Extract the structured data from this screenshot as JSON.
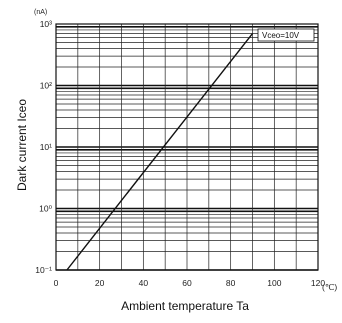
{
  "chart_data": {
    "type": "line",
    "title": "",
    "xlabel": "Ambient temperature   Ta",
    "xunit": "(℃)",
    "ylabel": "Dark current   Iceo",
    "yunit": "(nA)",
    "xlim": [
      0,
      120
    ],
    "ylim": [
      0.1,
      1000
    ],
    "yscale": "log",
    "grid": true,
    "x_ticks": [
      "0",
      "20",
      "40",
      "60",
      "80",
      "100",
      "120"
    ],
    "y_ticks": [
      "10⁻¹",
      "10⁰",
      "10¹",
      "10²",
      "10³"
    ],
    "series": [
      {
        "x": [
          5,
          90
        ],
        "y": [
          0.1,
          700
        ]
      }
    ],
    "annotations": [
      {
        "text": "Vceo=10V",
        "position": "top-right"
      }
    ]
  }
}
